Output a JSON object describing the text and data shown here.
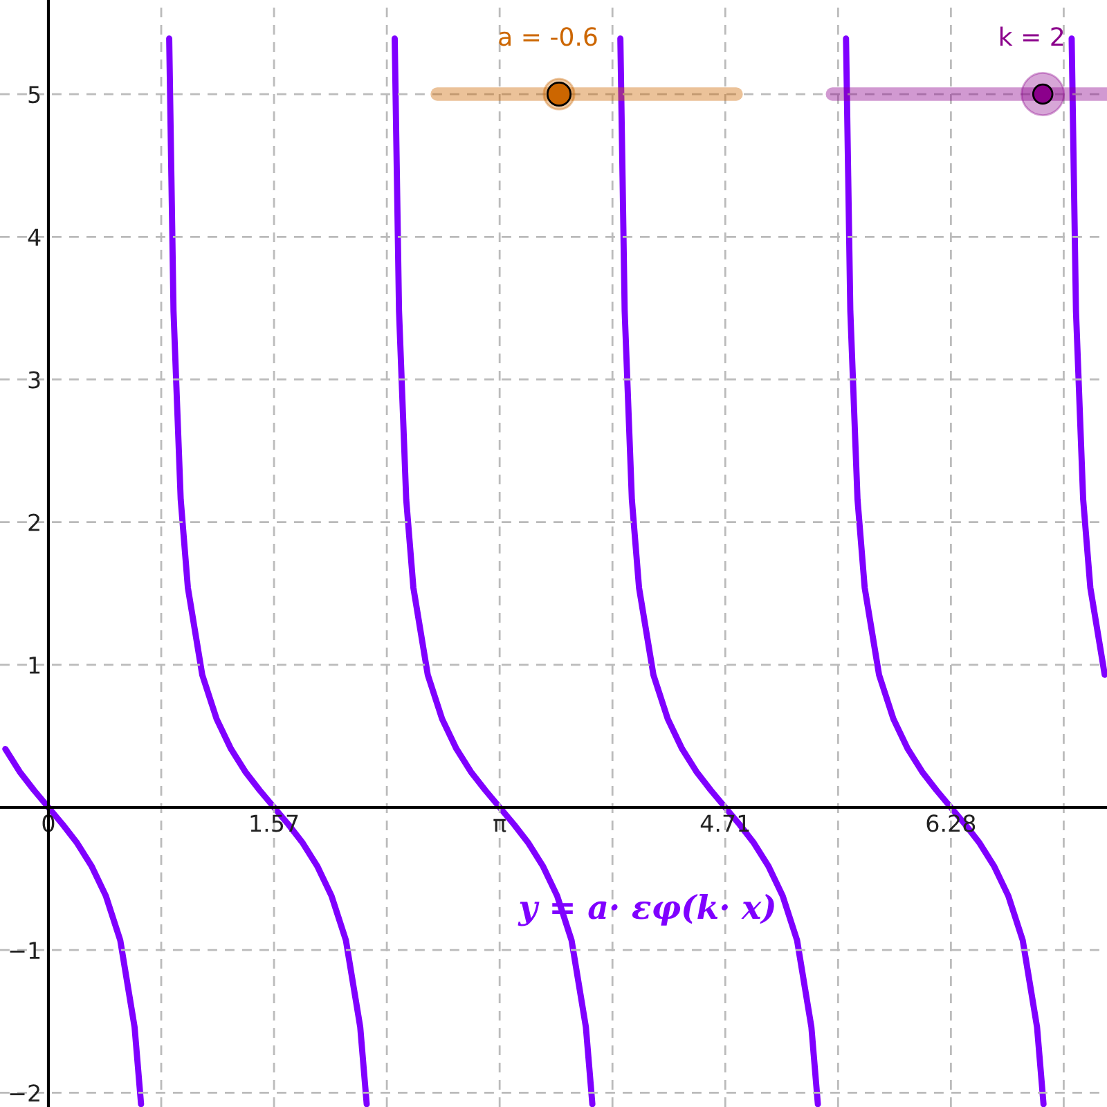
{
  "chart_data": {
    "type": "line",
    "series": [
      {
        "color": "#7f00ff",
        "x": [
          -0.3,
          -0.2,
          -0.1,
          0,
          0.1,
          0.2,
          0.3,
          0.4,
          0.5,
          0.6,
          0.645,
          null,
          0.841,
          0.871,
          0.921,
          0.971,
          1.071,
          1.171,
          1.271,
          1.371,
          1.471,
          1.571,
          1.671,
          1.771,
          1.871,
          1.971,
          2.071,
          2.171,
          2.216,
          null,
          2.411,
          2.441,
          2.491,
          2.541,
          2.641,
          2.741,
          2.841,
          2.941,
          3.042,
          3.142,
          3.242,
          3.342,
          3.442,
          3.542,
          3.642,
          3.742,
          3.787,
          null,
          3.982,
          4.012,
          4.062,
          4.112,
          4.212,
          4.312,
          4.412,
          4.512,
          4.612,
          4.712,
          4.812,
          4.912,
          5.012,
          5.112,
          5.212,
          5.312,
          5.357,
          null,
          5.553,
          5.583,
          5.633,
          5.683,
          5.783,
          5.883,
          5.983,
          6.083,
          6.183,
          6.283,
          6.383,
          6.483,
          6.583,
          6.683,
          6.783,
          6.883,
          6.928,
          null,
          7.124,
          7.154,
          7.204,
          7.254,
          7.354
        ],
        "values": [
          0.41,
          0.25,
          0.12,
          0,
          -0.12,
          -0.25,
          -0.41,
          -0.62,
          -0.93,
          -1.54,
          -2.08,
          null,
          5.39,
          3.48,
          2.16,
          1.54,
          0.93,
          0.62,
          0.41,
          0.25,
          0.12,
          0,
          -0.12,
          -0.25,
          -0.41,
          -0.62,
          -0.93,
          -1.54,
          -2.08,
          null,
          5.39,
          3.48,
          2.16,
          1.54,
          0.93,
          0.62,
          0.41,
          0.25,
          0.12,
          0,
          -0.12,
          -0.25,
          -0.41,
          -0.62,
          -0.93,
          -1.54,
          -2.08,
          null,
          5.39,
          3.48,
          2.16,
          1.54,
          0.93,
          0.62,
          0.41,
          0.25,
          0.12,
          0,
          -0.12,
          -0.25,
          -0.41,
          -0.62,
          -0.93,
          -1.54,
          -2.08,
          null,
          5.39,
          3.48,
          2.16,
          1.54,
          0.93,
          0.62,
          0.41,
          0.25,
          0.12,
          0,
          -0.12,
          -0.25,
          -0.41,
          -0.62,
          -0.93,
          -1.54,
          -2.08,
          null,
          5.39,
          3.48,
          2.16,
          1.54,
          0.93
        ]
      }
    ],
    "xlim": [
      -0.337,
      7.37
    ],
    "ylim": [
      -2.1,
      5.66
    ],
    "xticks": [
      0,
      {
        "value": 0.7854,
        "label": null
      },
      {
        "value": 1.5708,
        "label": "1.57"
      },
      {
        "value": 2.3562,
        "label": null
      },
      {
        "value": 3.1416,
        "label": "π"
      },
      {
        "value": 3.927,
        "label": null
      },
      {
        "value": 4.7124,
        "label": "4.71"
      },
      {
        "value": 5.4978,
        "label": null
      },
      {
        "value": 6.2832,
        "label": "6.28"
      },
      {
        "value": 7.0686,
        "label": null
      }
    ],
    "yticks": [
      -2,
      -1,
      {
        "value": 0,
        "label": null
      },
      1,
      2,
      3,
      4,
      5
    ],
    "grid": true,
    "line_style": "solid",
    "marker": "none",
    "annotations": [
      "a = -0.6",
      "k = 2",
      "y = a· εφ(k· x)"
    ]
  }
}
